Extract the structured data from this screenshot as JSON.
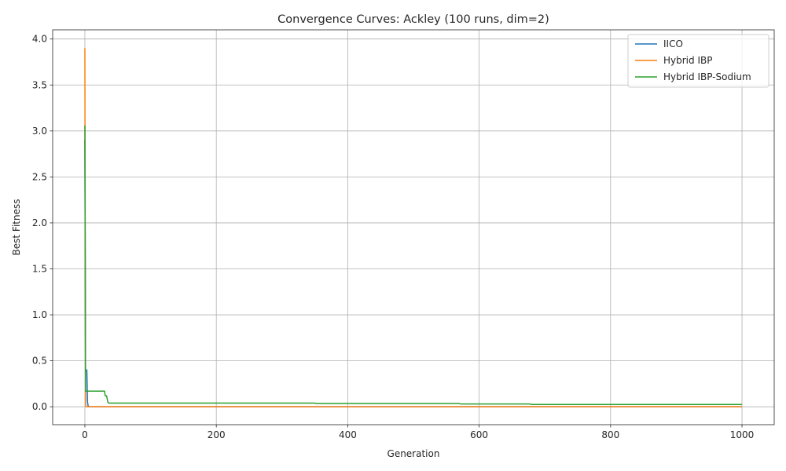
{
  "chart_data": {
    "type": "line",
    "title": "Convergence Curves: Ackley (100 runs, dim=2)",
    "xlabel": "Generation",
    "ylabel": "Best Fitness",
    "xlim": [
      -49,
      1049
    ],
    "ylim": [
      -0.195,
      4.1
    ],
    "xticks": [
      0,
      200,
      400,
      600,
      800,
      1000
    ],
    "yticks": [
      0.0,
      0.5,
      1.0,
      1.5,
      2.0,
      2.5,
      3.0,
      3.5,
      4.0
    ],
    "grid": true,
    "legend_position": "top-right",
    "series": [
      {
        "name": "IICO",
        "color": "#1f77b4",
        "points": [
          [
            0,
            2.9
          ],
          [
            1,
            0.4
          ],
          [
            2,
            0.4
          ],
          [
            3,
            0.4
          ],
          [
            4,
            0.05
          ],
          [
            5,
            0.01
          ],
          [
            6,
            0.0
          ],
          [
            1000,
            0.0
          ]
        ]
      },
      {
        "name": "Hybrid IBP",
        "color": "#ff7f0e",
        "points": [
          [
            0,
            3.9
          ],
          [
            1,
            0.03
          ],
          [
            2,
            0.0
          ],
          [
            1000,
            0.0
          ]
        ]
      },
      {
        "name": "Hybrid IBP-Sodium",
        "color": "#2ca02c",
        "points": [
          [
            0,
            3.06
          ],
          [
            1,
            0.17
          ],
          [
            30,
            0.17
          ],
          [
            31,
            0.12
          ],
          [
            33,
            0.12
          ],
          [
            35,
            0.05
          ],
          [
            36,
            0.04
          ],
          [
            350,
            0.04
          ],
          [
            352,
            0.035
          ],
          [
            570,
            0.035
          ],
          [
            572,
            0.03
          ],
          [
            678,
            0.03
          ],
          [
            680,
            0.025
          ],
          [
            1000,
            0.025
          ]
        ]
      }
    ]
  }
}
